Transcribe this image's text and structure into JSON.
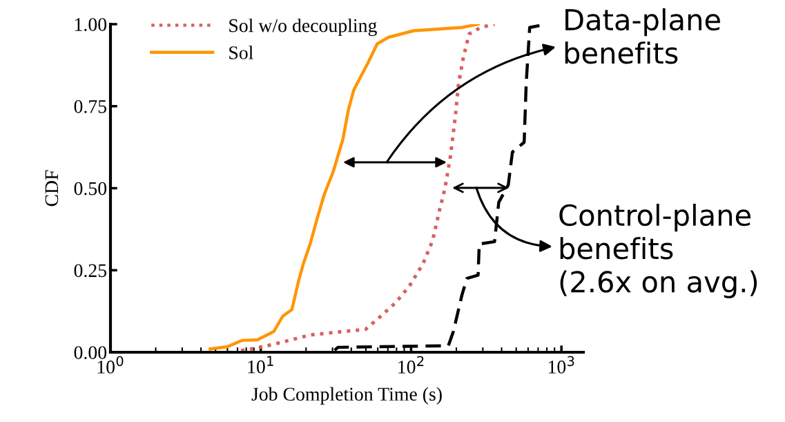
{
  "chart_data": {
    "type": "line",
    "xlabel": "Job Completion Time (s)",
    "ylabel": "CDF",
    "log": "x",
    "xlim": [
      1,
      1400
    ],
    "xticks": [
      {
        "value": 1,
        "label": "10$^{0}$"
      },
      {
        "value": 10,
        "label": "10$^{1}$"
      },
      {
        "value": 100,
        "label": "10$^{2}$"
      },
      {
        "value": 1000,
        "label": "10$^{3}$"
      }
    ],
    "ylim": [
      0,
      1
    ],
    "yticks": [
      {
        "value": 0,
        "label": "0.00"
      },
      {
        "value": 0.25,
        "label": "0.25"
      },
      {
        "value": 0.5,
        "label": "0.50"
      },
      {
        "value": 0.75,
        "label": "0.75"
      },
      {
        "value": 1,
        "label": "1.00"
      }
    ],
    "grid": false,
    "legend": "top left",
    "marker": "none",
    "series": [
      {
        "name": "Sol w/o decoupling",
        "color": "#d9605f",
        "line_style": "dotted",
        "x": [
          7.4,
          10,
          14.8,
          21.4,
          49.8,
          59.5,
          78.4,
          96.9,
          120,
          139,
          154,
          168,
          183,
          197,
          207,
          223,
          243,
          290,
          359
        ],
        "values": [
          0.005,
          0.015,
          0.034,
          0.053,
          0.07,
          0.1,
          0.15,
          0.2,
          0.27,
          0.34,
          0.43,
          0.5,
          0.6,
          0.72,
          0.82,
          0.9,
          0.97,
          0.99,
          1.0
        ]
      },
      {
        "name": "Sol",
        "color": "#ff9505",
        "line_style": "solid",
        "x": [
          4.6,
          6.0,
          7.5,
          9.5,
          12.2,
          14.0,
          16.1,
          17.9,
          19.2,
          21.3,
          23.8,
          26.4,
          30.3,
          35.2,
          38.3,
          41.6,
          46.2,
          51.4,
          59.5,
          70.6,
          104,
          218,
          279
        ],
        "values": [
          0.01,
          0.017,
          0.036,
          0.038,
          0.063,
          0.11,
          0.13,
          0.22,
          0.27,
          0.33,
          0.41,
          0.48,
          0.55,
          0.65,
          0.74,
          0.8,
          0.84,
          0.88,
          0.94,
          0.96,
          0.98,
          0.99,
          1.0
        ]
      },
      {
        "color": "#000000",
        "line_style": "dashed",
        "x": [
          31,
          32.6,
          177,
          191,
          218,
          235,
          279,
          284,
          359,
          383,
          443,
          472,
          565,
          583,
          615,
          801
        ],
        "values": [
          0.006,
          0.015,
          0.02,
          0.063,
          0.175,
          0.225,
          0.235,
          0.33,
          0.337,
          0.457,
          0.51,
          0.61,
          0.64,
          0.82,
          0.99,
          1.0
        ]
      }
    ],
    "annotations": [
      "Data-plane\nbenefits",
      "Control-plane\nbenefits\n(2.6x on avg.)"
    ]
  }
}
